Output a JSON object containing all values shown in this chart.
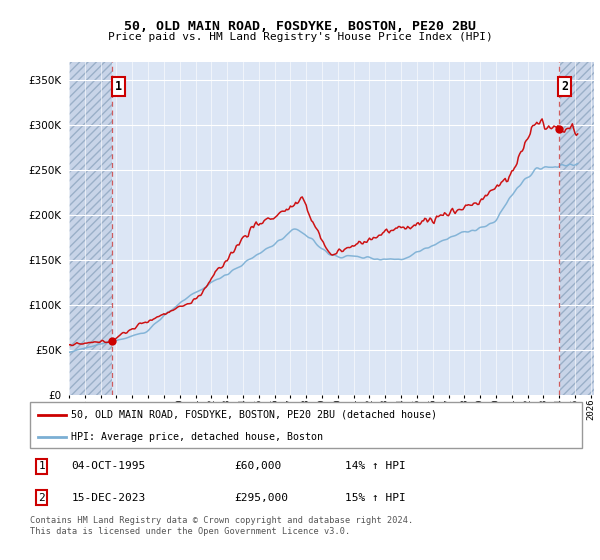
{
  "title": "50, OLD MAIN ROAD, FOSDYKE, BOSTON, PE20 2BU",
  "subtitle": "Price paid vs. HM Land Registry's House Price Index (HPI)",
  "legend_line1": "50, OLD MAIN ROAD, FOSDYKE, BOSTON, PE20 2BU (detached house)",
  "legend_line2": "HPI: Average price, detached house, Boston",
  "annotation1_label": "1",
  "annotation1_date": "04-OCT-1995",
  "annotation1_price": "£60,000",
  "annotation1_hpi": "14% ↑ HPI",
  "annotation2_label": "2",
  "annotation2_date": "15-DEC-2023",
  "annotation2_price": "£295,000",
  "annotation2_hpi": "15% ↑ HPI",
  "footer": "Contains HM Land Registry data © Crown copyright and database right 2024.\nThis data is licensed under the Open Government Licence v3.0.",
  "hatch_color": "#c8d4e8",
  "plot_bg": "#dce6f5",
  "red_line_color": "#cc0000",
  "blue_line_color": "#7bafd4",
  "sale1_x": 1995.75,
  "sale1_y": 60000,
  "sale2_x": 2023.96,
  "sale2_y": 295000,
  "ylim": [
    0,
    370000
  ],
  "xlim_start": 1993.0,
  "xlim_end": 2026.2
}
